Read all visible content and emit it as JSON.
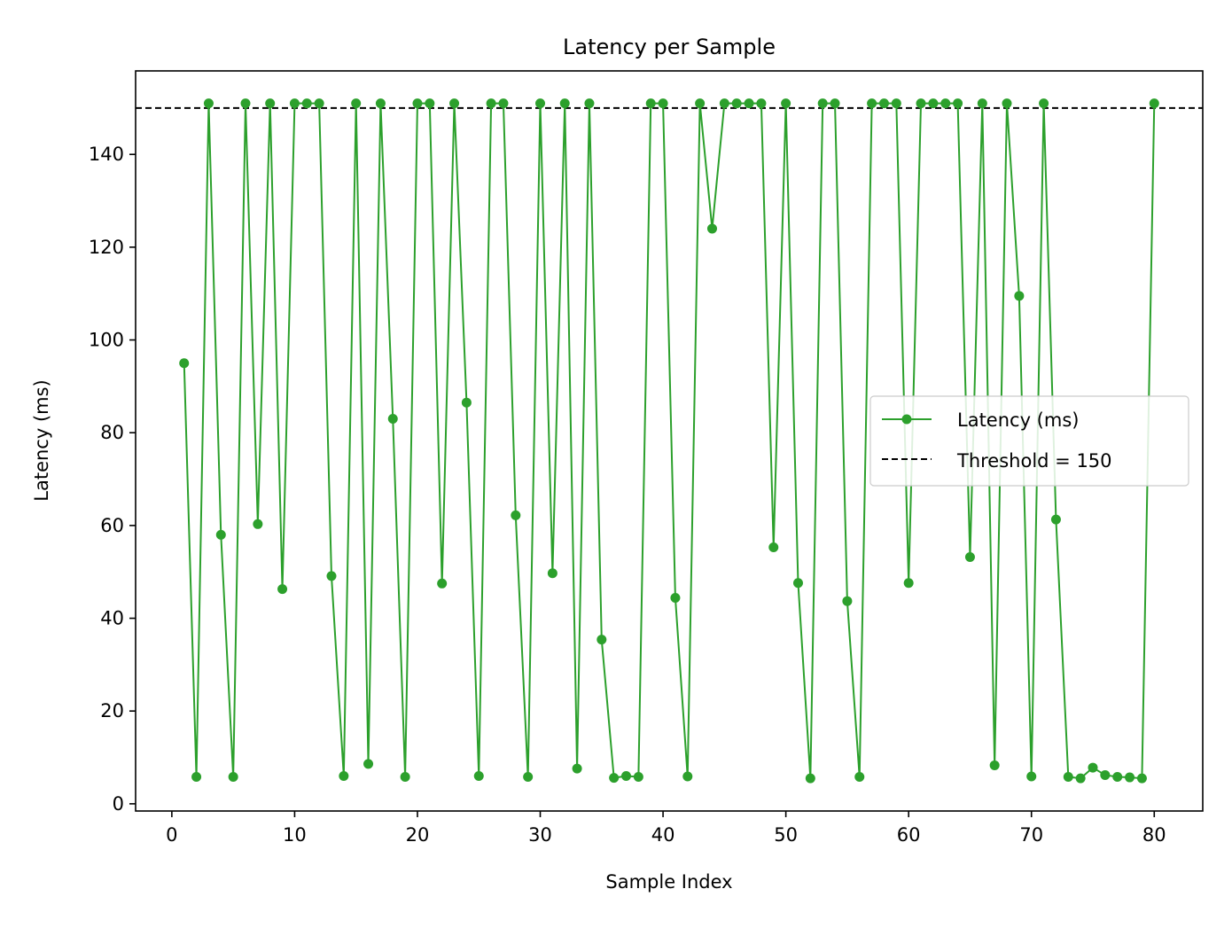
{
  "chart_data": {
    "type": "line",
    "title": "Latency per Sample",
    "xlabel": "Sample Index",
    "ylabel": "Latency (ms)",
    "xlim": [
      -2.95,
      83.95
    ],
    "ylim": [
      -1.55,
      158.0
    ],
    "x_ticks": [
      0,
      10,
      20,
      30,
      40,
      50,
      60,
      70,
      80
    ],
    "y_ticks": [
      0,
      20,
      40,
      60,
      80,
      100,
      120,
      140
    ],
    "grid": false,
    "legend_position": "center right",
    "series": [
      {
        "name": "Latency (ms)",
        "color": "#2ca02c",
        "marker": "circle",
        "x": [
          1,
          2,
          3,
          4,
          5,
          6,
          7,
          8,
          9,
          10,
          11,
          12,
          13,
          14,
          15,
          16,
          17,
          18,
          19,
          20,
          21,
          22,
          23,
          24,
          25,
          26,
          27,
          28,
          29,
          30,
          31,
          32,
          33,
          34,
          35,
          36,
          37,
          38,
          39,
          40,
          41,
          42,
          43,
          44,
          45,
          46,
          47,
          48,
          49,
          50,
          51,
          52,
          53,
          54,
          55,
          56,
          57,
          58,
          59,
          60,
          61,
          62,
          63,
          64,
          65,
          66,
          67,
          68,
          69,
          70,
          71,
          72,
          73,
          74,
          75,
          76,
          77,
          78,
          79,
          80
        ],
        "values": [
          95,
          5.8,
          151,
          58,
          5.8,
          151,
          60.3,
          151,
          46.3,
          151,
          151,
          151,
          49.1,
          6,
          151,
          8.6,
          151,
          83,
          5.8,
          151,
          151,
          47.5,
          151,
          86.5,
          6,
          151,
          151,
          62.2,
          5.8,
          151,
          49.7,
          151,
          7.6,
          151,
          35.4,
          5.6,
          6,
          5.8,
          151,
          151,
          44.4,
          5.9,
          151,
          124,
          151,
          151,
          151,
          151,
          55.3,
          151,
          47.6,
          5.5,
          151,
          151,
          43.7,
          5.8,
          151,
          151,
          151,
          47.6,
          151,
          151,
          151,
          151,
          53.2,
          151,
          8.3,
          151,
          109.5,
          5.9,
          151,
          61.3,
          5.8,
          5.5,
          7.8,
          6.2,
          5.8,
          5.7,
          5.5,
          151
        ]
      },
      {
        "name": "Threshold = 150",
        "color": "#000000",
        "style": "dashed",
        "y": 150
      }
    ]
  }
}
